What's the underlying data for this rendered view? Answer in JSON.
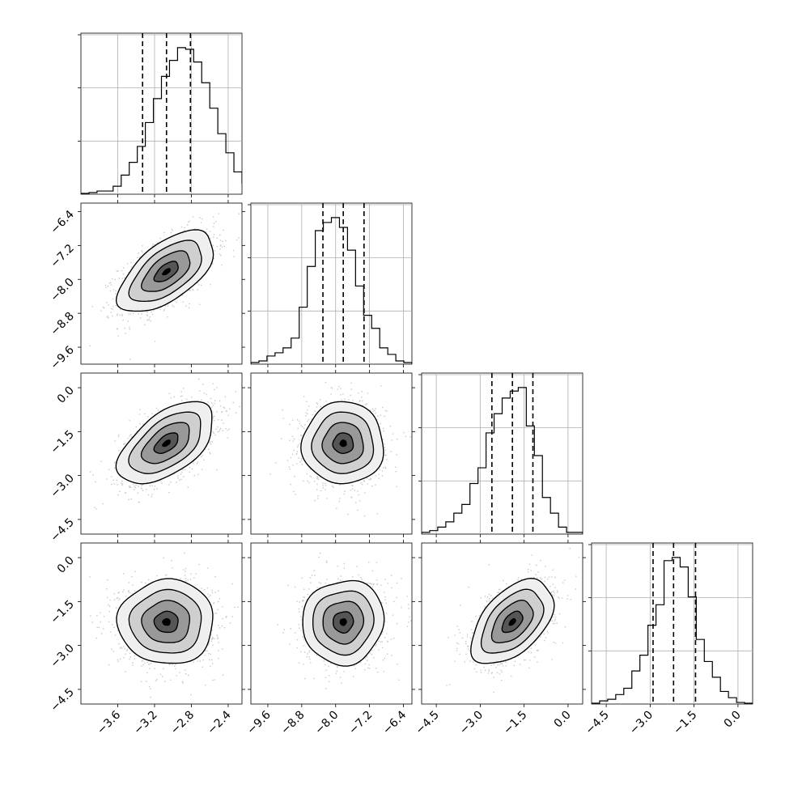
{
  "chart_data": {
    "type": "corner",
    "description_free": true,
    "grid": true,
    "num_params": 4,
    "params": [
      {
        "range": [
          -4.0,
          -2.25
        ],
        "ticks": [
          -3.6,
          -3.2,
          -2.8,
          -2.4
        ],
        "tick_labels": [
          "−3.6",
          "−3.2",
          "−2.8",
          "−2.4"
        ],
        "quantiles": [
          -3.33,
          -3.07,
          -2.81
        ]
      },
      {
        "range": [
          -10.0,
          -6.2
        ],
        "ticks": [
          -9.6,
          -8.8,
          -8.0,
          -7.2,
          -6.4
        ],
        "tick_labels": [
          "−9.6",
          "−8.8",
          "−8.0",
          "−7.2",
          "−6.4"
        ],
        "quantiles": [
          -8.3,
          -7.82,
          -7.33
        ]
      },
      {
        "range": [
          -5.0,
          0.5
        ],
        "ticks": [
          -4.5,
          -3.0,
          -1.5,
          0.0
        ],
        "tick_labels": [
          "−4.5",
          "−3.0",
          "−1.5",
          "0.0"
        ],
        "quantiles": [
          -2.6,
          -1.9,
          -1.2
        ]
      },
      {
        "range": [
          -5.0,
          0.5
        ],
        "ticks": [
          -4.5,
          -3.0,
          -1.5,
          0.0
        ],
        "tick_labels": [
          "−4.5",
          "−3.0",
          "−1.5",
          "0.0"
        ],
        "quantiles": [
          -2.9,
          -2.2,
          -1.45
        ]
      }
    ],
    "histograms": [
      {
        "bin_start": -4.0,
        "bin_width": 0.0875,
        "counts": [
          0.005,
          0.01,
          0.02,
          0.02,
          0.05,
          0.12,
          0.2,
          0.3,
          0.45,
          0.6,
          0.74,
          0.84,
          0.92,
          0.91,
          0.83,
          0.7,
          0.54,
          0.38,
          0.26,
          0.14,
          0.07,
          0.03,
          0.015,
          0.01,
          0.01,
          0.005,
          0.003,
          0.002,
          0.001,
          0.001
        ]
      },
      {
        "bin_start": -10.0,
        "bin_width": 0.19,
        "counts": [
          0.01,
          0.02,
          0.05,
          0.07,
          0.1,
          0.16,
          0.35,
          0.6,
          0.82,
          0.87,
          0.9,
          0.84,
          0.7,
          0.48,
          0.3,
          0.22,
          0.1,
          0.06,
          0.02,
          0.01
        ]
      },
      {
        "bin_start": -5.0,
        "bin_width": 0.275,
        "counts": [
          0.01,
          0.02,
          0.04,
          0.07,
          0.12,
          0.17,
          0.29,
          0.38,
          0.58,
          0.69,
          0.78,
          0.82,
          0.84,
          0.62,
          0.45,
          0.21,
          0.12,
          0.04,
          0.01,
          0.01
        ]
      },
      {
        "bin_start": -5.0,
        "bin_width": 0.275,
        "counts": [
          0.005,
          0.02,
          0.03,
          0.06,
          0.1,
          0.21,
          0.31,
          0.5,
          0.63,
          0.91,
          0.93,
          0.87,
          0.68,
          0.41,
          0.27,
          0.17,
          0.08,
          0.04,
          0.01,
          0.005
        ]
      }
    ],
    "pairs": [
      {
        "i": 1,
        "j": 0,
        "mean": [
          -3.07,
          -7.82
        ],
        "sd": [
          0.26,
          0.48
        ],
        "rho": 0.6
      },
      {
        "i": 2,
        "j": 0,
        "mean": [
          -3.07,
          -1.9
        ],
        "sd": [
          0.26,
          0.7
        ],
        "rho": 0.55
      },
      {
        "i": 2,
        "j": 1,
        "mean": [
          -7.82,
          -1.9
        ],
        "sd": [
          0.48,
          0.7
        ],
        "rho": 0.0
      },
      {
        "i": 3,
        "j": 0,
        "mean": [
          -3.07,
          -2.2
        ],
        "sd": [
          0.26,
          0.72
        ],
        "rho": 0.0
      },
      {
        "i": 3,
        "j": 1,
        "mean": [
          -7.82,
          -2.2
        ],
        "sd": [
          0.48,
          0.72
        ],
        "rho": 0.05
      },
      {
        "i": 3,
        "j": 2,
        "mean": [
          -1.9,
          -2.2
        ],
        "sd": [
          0.7,
          0.72
        ],
        "rho": 0.5
      }
    ]
  }
}
